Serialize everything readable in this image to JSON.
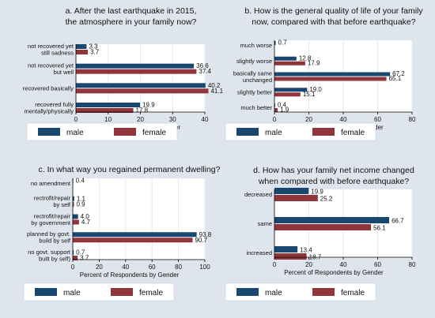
{
  "colors": {
    "male": "#1a476f",
    "female": "#90353b",
    "background": "#dfe5ec",
    "plot_bg": "#ffffff"
  },
  "chart_data": [
    {
      "type": "bar",
      "orientation": "horizontal",
      "position": "top-left",
      "title": [
        "a. After the last earthquake in 2015,",
        "the atmosphere in your family now?"
      ],
      "xlabel": "Percent of Respondents by Gender",
      "xlim": [
        0,
        40
      ],
      "xticks": [
        0,
        10,
        20,
        30,
        40
      ],
      "categories": [
        [
          "not recovered yet",
          "still sadness"
        ],
        [
          "not recovered yet",
          "but well"
        ],
        [
          "recovered basically"
        ],
        [
          "recovered fully",
          "mentally/physically"
        ]
      ],
      "series": [
        {
          "name": "male",
          "values": [
            3.3,
            36.6,
            40.2,
            19.9
          ],
          "labels": [
            "3.3",
            "36.6",
            "40.2",
            "19.9"
          ]
        },
        {
          "name": "female",
          "values": [
            3.7,
            37.4,
            41.1,
            17.8
          ],
          "labels": [
            "3.7",
            "37.4",
            "41.1",
            "17.8"
          ]
        }
      ],
      "legend": "bottom"
    },
    {
      "type": "bar",
      "orientation": "horizontal",
      "position": "top-right",
      "title": [
        "b. How is the general quality of life of your family",
        "now, compared with that before earthquake?"
      ],
      "xlabel": "Percent of Respondents by Gender",
      "xlim": [
        0,
        80
      ],
      "xticks": [
        0,
        20,
        40,
        60,
        80
      ],
      "categories": [
        [
          "much worse"
        ],
        [
          "slightly worse"
        ],
        [
          "basically same",
          "unchanged"
        ],
        [
          "slightly better"
        ],
        [
          "much better"
        ]
      ],
      "series": [
        {
          "name": "male",
          "values": [
            0.7,
            12.8,
            67.2,
            19.0,
            0.4
          ],
          "labels": [
            "0.7",
            "12.8",
            "67.2",
            "19.0",
            "0.4"
          ]
        },
        {
          "name": "female",
          "values": [
            0,
            17.9,
            65.1,
            15.1,
            1.9
          ],
          "labels": [
            "",
            "17.9",
            "65.1",
            "15.1",
            "1.9"
          ]
        }
      ],
      "legend": "bottom"
    },
    {
      "type": "bar",
      "orientation": "horizontal",
      "position": "bottom-left",
      "title": [
        "c. In what way you regained permanent dwelling?"
      ],
      "xlabel": "Percent of Respondents by Gender",
      "xlim": [
        0,
        100
      ],
      "xticks": [
        0,
        20,
        40,
        60,
        80,
        100
      ],
      "categories": [
        [
          "no amendment"
        ],
        [
          "rectrofit/repair",
          "by self"
        ],
        [
          "rectrofit/repair",
          "by government"
        ],
        [
          "planned by govt.",
          "build by self"
        ],
        [
          "no govt. support",
          "built by self)"
        ]
      ],
      "series": [
        {
          "name": "male",
          "values": [
            0.4,
            1.1,
            4.0,
            93.8,
            0.7
          ],
          "labels": [
            "0.4",
            "1.1",
            "4.0",
            "93.8",
            "0.7"
          ]
        },
        {
          "name": "female",
          "values": [
            0,
            0.9,
            4.7,
            90.7,
            3.7
          ],
          "labels": [
            "",
            "0.9",
            "4.7",
            "90.7",
            "3.7"
          ]
        }
      ],
      "legend": "bottom"
    },
    {
      "type": "bar",
      "orientation": "horizontal",
      "position": "bottom-right",
      "title": [
        "d. How has your family net income changed",
        "when compared with before earthquake?"
      ],
      "xlabel": "Percent of Respondents by Gender",
      "xlim": [
        0,
        80
      ],
      "xticks": [
        0,
        20,
        40,
        60,
        80
      ],
      "categories": [
        [
          "decreased"
        ],
        [
          "same"
        ],
        [
          "increased"
        ]
      ],
      "series": [
        {
          "name": "male",
          "values": [
            19.9,
            66.7,
            13.4
          ],
          "labels": [
            "19.9",
            "66.7",
            "13.4"
          ]
        },
        {
          "name": "female",
          "values": [
            25.2,
            56.1,
            18.7
          ],
          "labels": [
            "25.2",
            "56.1",
            "18.7"
          ]
        }
      ],
      "legend": "bottom"
    }
  ]
}
